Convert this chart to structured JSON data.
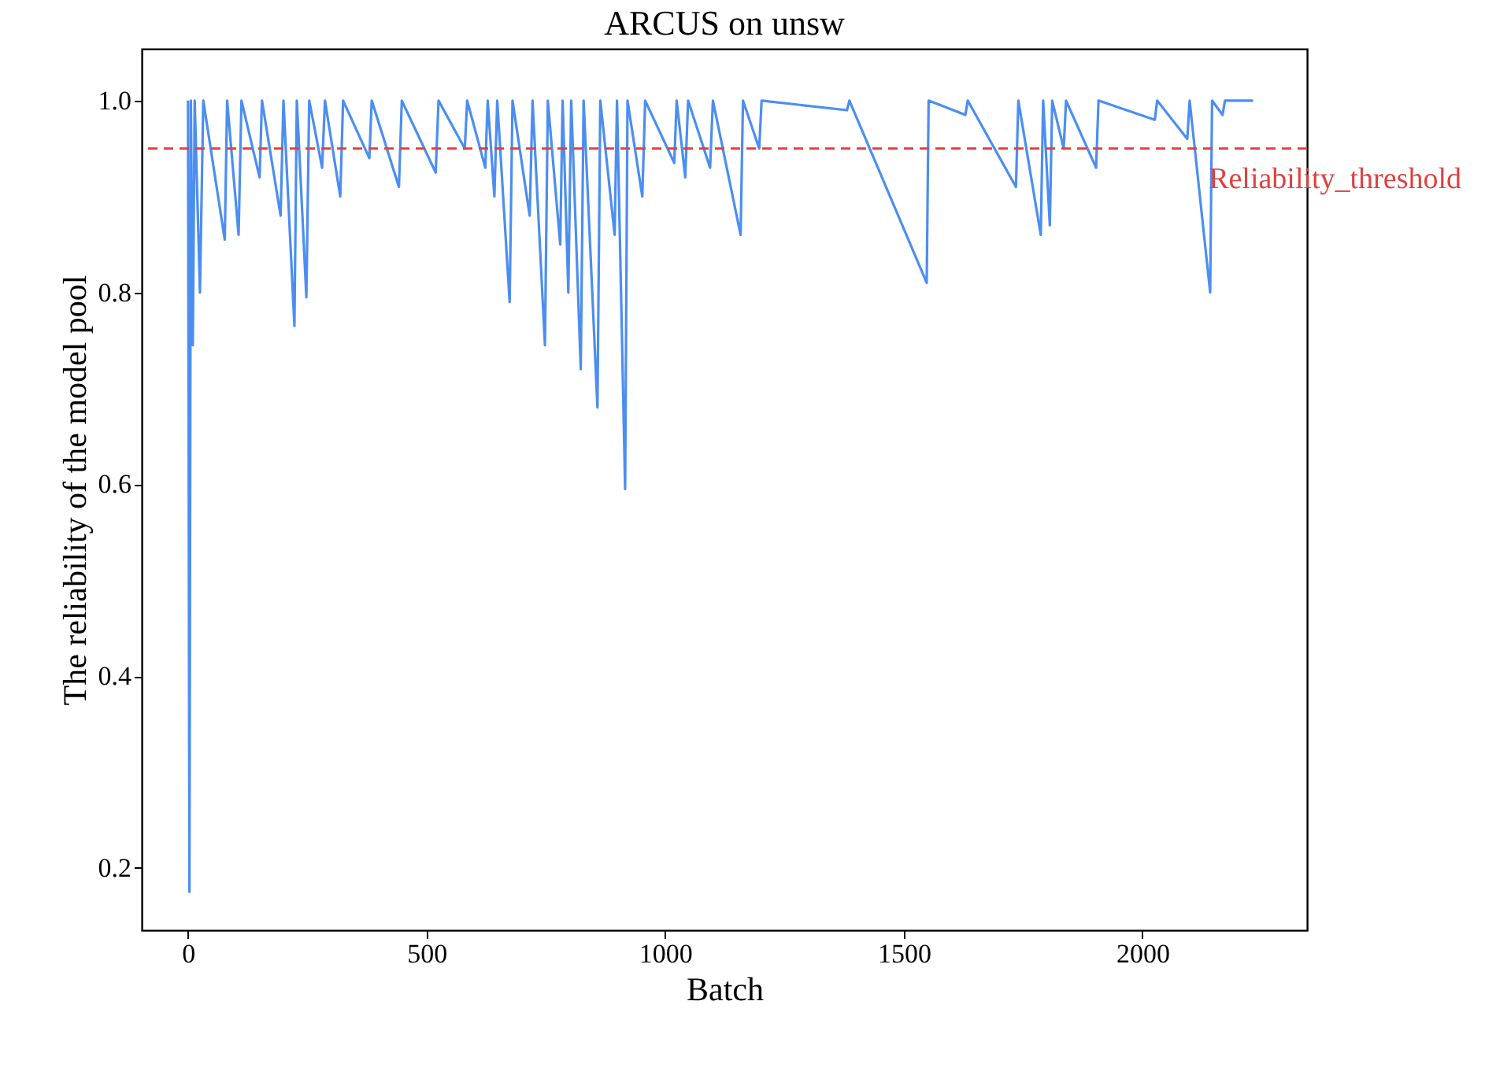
{
  "chart_data": {
    "type": "line",
    "title": "ARCUS on unsw",
    "xlabel": "Batch",
    "ylabel": "The reliability of the model pool",
    "xlim": [
      -97,
      2345
    ],
    "ylim": [
      0.135,
      1.054
    ],
    "xticks": [
      0,
      500,
      1000,
      1500,
      2000
    ],
    "yticks": [
      0.2,
      0.4,
      0.6,
      0.8,
      {
        "value": 1,
        "label": "1.0"
      }
    ],
    "grid": false,
    "line_style": "solid",
    "marker": "none",
    "series": [
      {
        "color": "#4c8ef0",
        "x": [
          0,
          3,
          6,
          10,
          14,
          25,
          32,
          77,
          82,
          106,
          112,
          150,
          155,
          194,
          200,
          223,
          228,
          248,
          254,
          281,
          287,
          319,
          325,
          380,
          385,
          442,
          448,
          519,
          525,
          580,
          585,
          623,
          628,
          642,
          648,
          674,
          680,
          716,
          722,
          748,
          754,
          780,
          785,
          797,
          803,
          823,
          829,
          858,
          864,
          894,
          899,
          916,
          921,
          952,
          958,
          1019,
          1024,
          1042,
          1048,
          1094,
          1100,
          1158,
          1163,
          1197,
          1202,
          1381,
          1386,
          1548,
          1552,
          1629,
          1634,
          1735,
          1740,
          1787,
          1792,
          1806,
          1811,
          1835,
          1840,
          1903,
          1908,
          2026,
          2031,
          2094,
          2099,
          2142,
          2146,
          2168,
          2173,
          2232
        ],
        "values": [
          1.0,
          0.175,
          1.0,
          0.745,
          1.0,
          0.8,
          1.0,
          0.855,
          1.0,
          0.86,
          1.0,
          0.92,
          1.0,
          0.88,
          1.0,
          0.765,
          1.0,
          0.795,
          1.0,
          0.93,
          1.0,
          0.9,
          1.0,
          0.94,
          1.0,
          0.91,
          1.0,
          0.925,
          1.0,
          0.95,
          1.0,
          0.93,
          1.0,
          0.9,
          1.0,
          0.79,
          1.0,
          0.88,
          1.0,
          0.745,
          1.0,
          0.85,
          1.0,
          0.8,
          1.0,
          0.72,
          1.0,
          0.68,
          1.0,
          0.86,
          1.0,
          0.595,
          1.0,
          0.9,
          1.0,
          0.935,
          1.0,
          0.92,
          1.0,
          0.93,
          1.0,
          0.86,
          1.0,
          0.95,
          1.0,
          0.99,
          1.0,
          0.81,
          1.0,
          0.985,
          1.0,
          0.91,
          1.0,
          0.86,
          1.0,
          0.87,
          1.0,
          0.95,
          1.0,
          0.93,
          1.0,
          0.98,
          1.0,
          0.96,
          1.0,
          0.8,
          1.0,
          0.985,
          1.0,
          1.0
        ]
      }
    ],
    "ref_lines": [
      {
        "axis": "y",
        "value": 0.95,
        "label": "Reliability_threshold",
        "color": "#e0403f",
        "line_style": "dashed"
      }
    ]
  }
}
